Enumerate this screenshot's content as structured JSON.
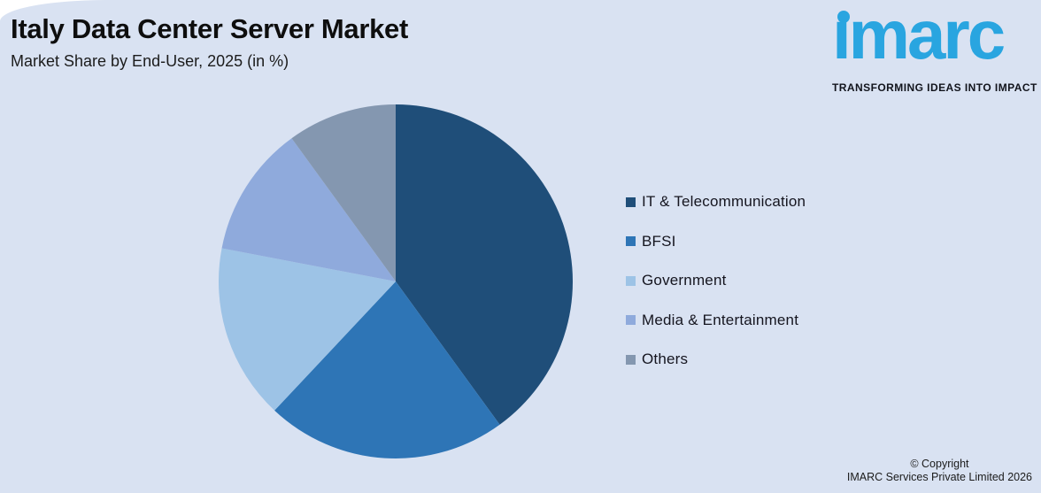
{
  "header": {
    "title": "Italy Data Center Server Market",
    "subtitle": "Market Share by End-User, 2025 (in %)"
  },
  "logo": {
    "name": "imarc",
    "tagline": "TRANSFORMING IDEAS INTO IMPACT",
    "brand_color": "#29a5e0"
  },
  "chart_data": {
    "type": "pie",
    "title": "Italy Data Center Server Market",
    "subtitle": "Market Share by End-User, 2025 (in %)",
    "categories": [
      "IT & Telecommunication",
      "BFSI",
      "Government",
      "Media & Entertainment",
      "Others"
    ],
    "values": [
      40,
      22,
      16,
      12,
      10
    ],
    "unit": "%",
    "colors": [
      "#1f4e79",
      "#2e75b6",
      "#9dc3e6",
      "#8faadc",
      "#8497b0"
    ],
    "start_angle_deg": 0,
    "direction": "clockwise",
    "legend_position": "right",
    "data_labels": false
  },
  "footer": {
    "line1": "© Copyright",
    "line2": "IMARC Services Private Limited 2026"
  },
  "colors": {
    "background": "#d9e2f2"
  }
}
